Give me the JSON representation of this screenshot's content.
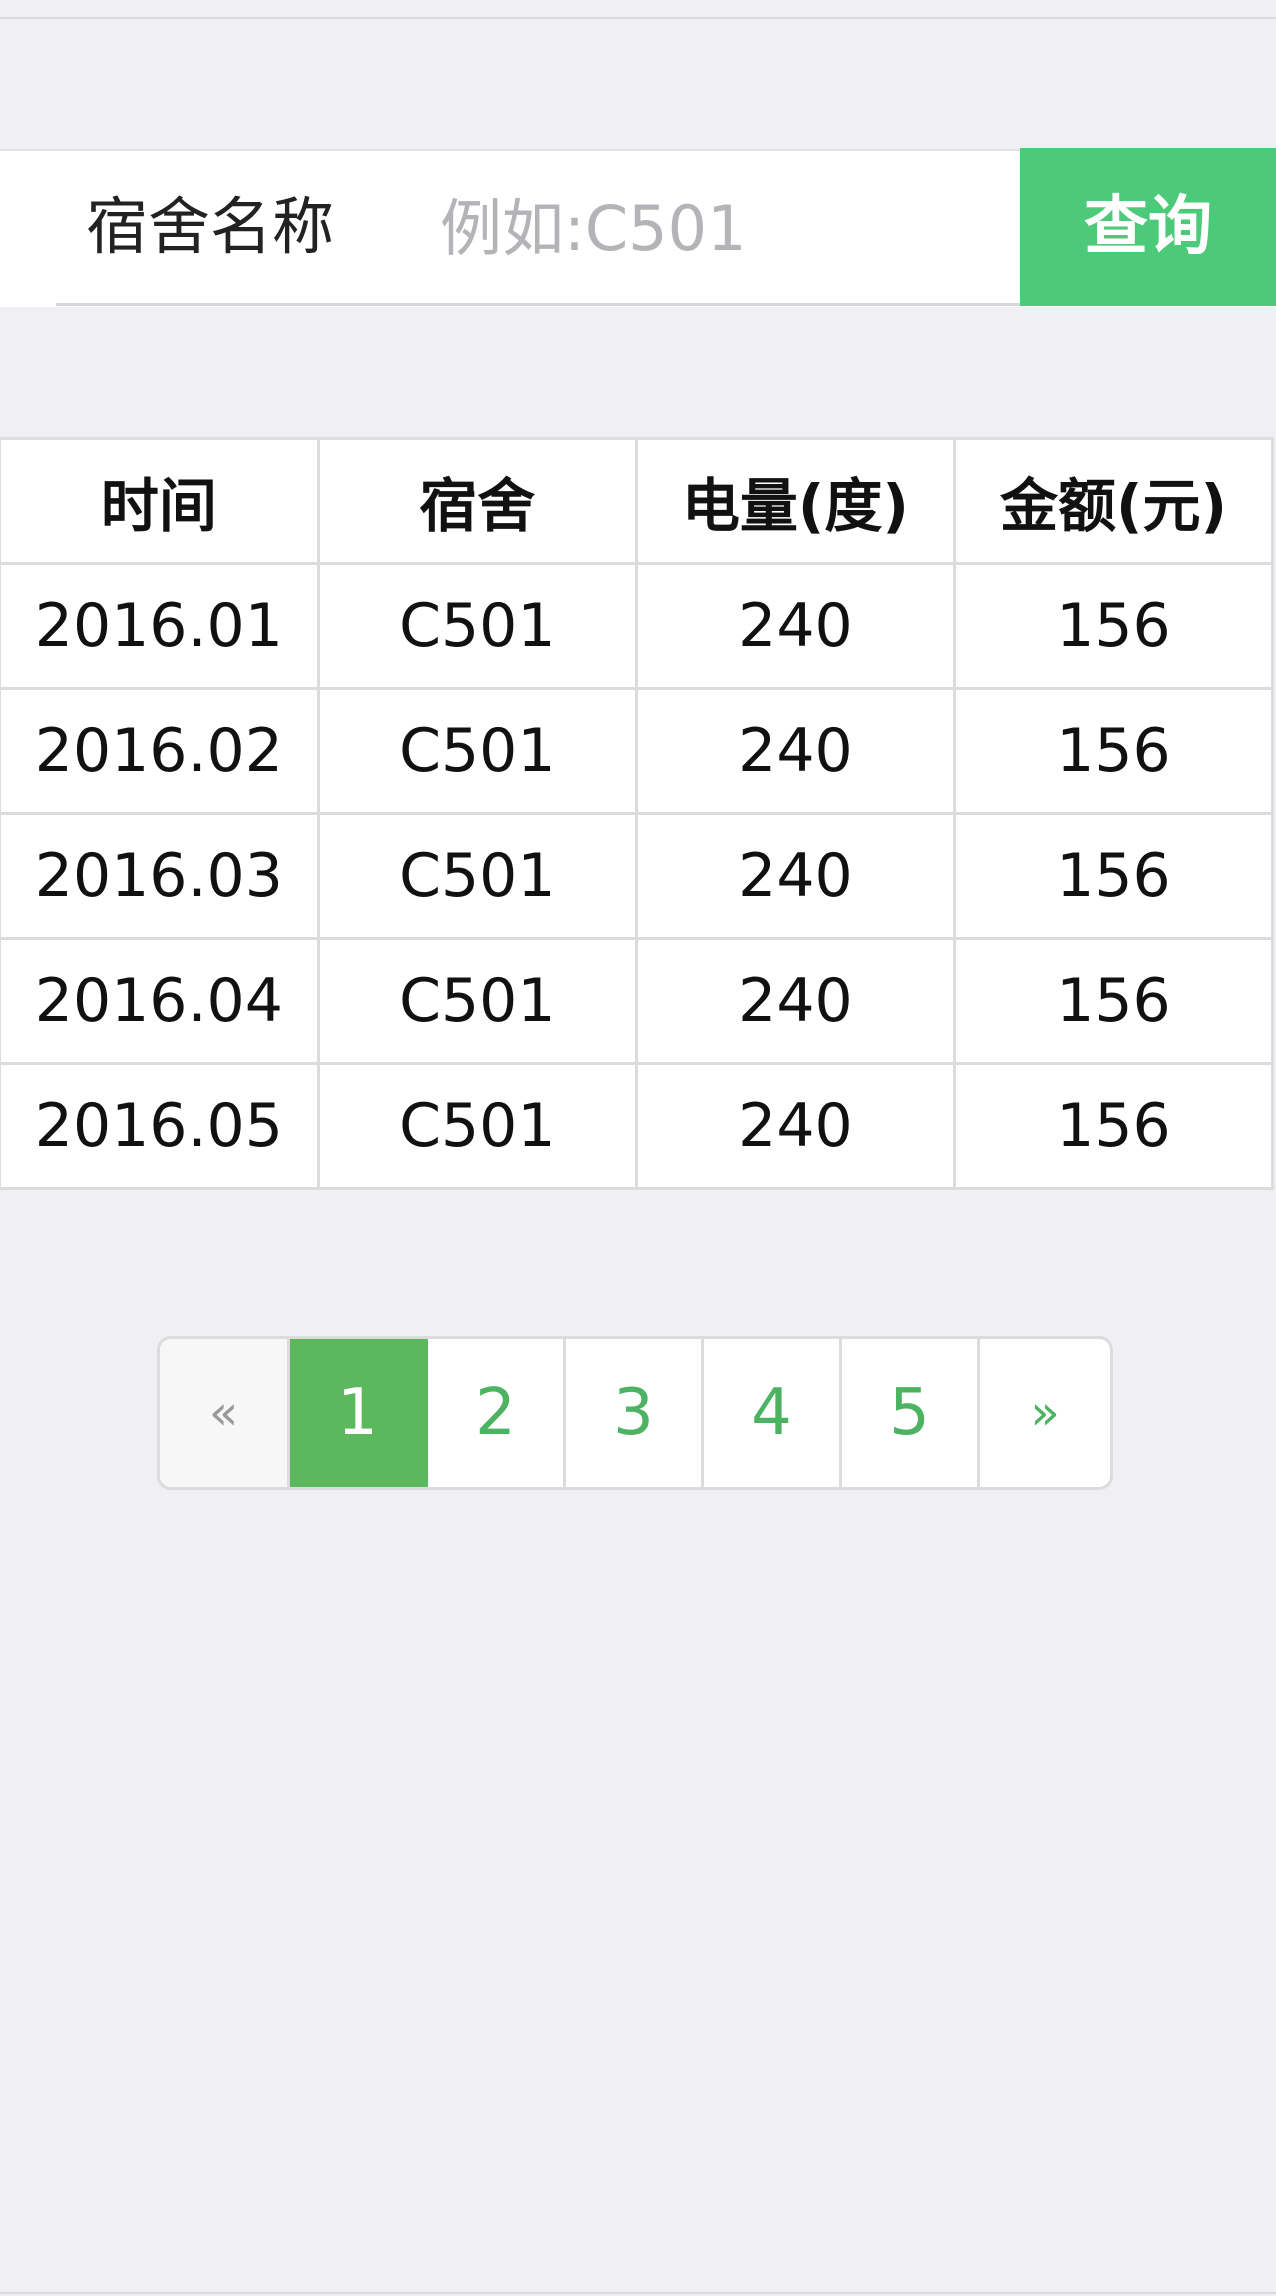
{
  "search": {
    "label": "宿舍名称",
    "placeholder": "例如:C501",
    "button_label": "查询"
  },
  "table": {
    "headers": [
      "时间",
      "宿舍",
      "电量(度)",
      "金额(元)"
    ],
    "rows": [
      [
        "2016.01",
        "C501",
        "240",
        "156"
      ],
      [
        "2016.02",
        "C501",
        "240",
        "156"
      ],
      [
        "2016.03",
        "C501",
        "240",
        "156"
      ],
      [
        "2016.04",
        "C501",
        "240",
        "156"
      ],
      [
        "2016.05",
        "C501",
        "240",
        "156"
      ]
    ]
  },
  "pagination": {
    "prev": "«",
    "next": "»",
    "pages": [
      "1",
      "2",
      "3",
      "4",
      "5"
    ],
    "current": "1"
  },
  "colors": {
    "accent": "#4cca7a",
    "active_page": "#5cb85c",
    "page_link": "#4bb361",
    "background": "#efeff4"
  }
}
